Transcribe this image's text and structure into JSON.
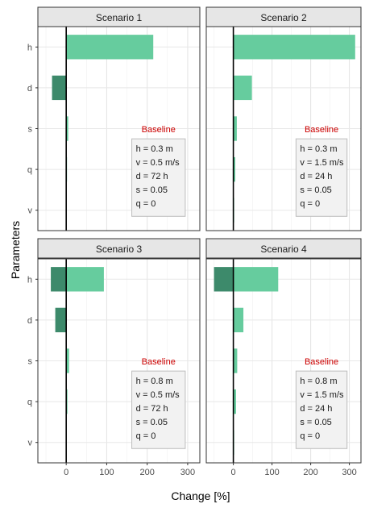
{
  "chart_data": {
    "type": "bar",
    "orientation": "horizontal",
    "xlabel": "Change [%]",
    "ylabel": "Parameters",
    "xlim": [
      -70,
      330
    ],
    "x_ticks": [
      0,
      100,
      200,
      300
    ],
    "categories": [
      "h",
      "d",
      "s",
      "q",
      "v"
    ],
    "grid": true,
    "colors": {
      "increase": "#66cc9e",
      "decrease": "#3d8a6b",
      "zero_line": "#000000",
      "strip_bg": "#e6e6e6",
      "box_bg": "#f2f2f2",
      "baseline_title": "#cc0000"
    },
    "panels": [
      {
        "title": "Scenario 1",
        "series": [
          {
            "values": [
              215,
              0,
              5,
              2,
              0
            ]
          },
          {
            "values": [
              0,
              -35,
              0,
              0,
              0
            ]
          }
        ],
        "baseline": {
          "title": "Baseline",
          "lines": [
            "h = 0.3 m",
            "v = 0.5 m/s",
            "d = 72 h",
            "s = 0.05",
            "q = 0"
          ]
        }
      },
      {
        "title": "Scenario 2",
        "series": [
          {
            "values": [
              315,
              48,
              9,
              5,
              2
            ]
          },
          {
            "values": [
              0,
              0,
              0,
              0,
              0
            ]
          }
        ],
        "baseline": {
          "title": "Baseline",
          "lines": [
            "h = 0.3 m",
            "v = 1.5 m/s",
            "d = 24 h",
            "s = 0.05",
            "q = 0"
          ]
        }
      },
      {
        "title": "Scenario 3",
        "series": [
          {
            "values": [
              93,
              0,
              7,
              3,
              0
            ]
          },
          {
            "values": [
              -38,
              -27,
              0,
              0,
              0
            ]
          }
        ],
        "baseline": {
          "title": "Baseline",
          "lines": [
            "h = 0.8 m",
            "v = 0.5 m/s",
            "d = 72 h",
            "s = 0.05",
            "q = 0"
          ]
        }
      },
      {
        "title": "Scenario 4",
        "series": [
          {
            "values": [
              116,
              26,
              10,
              7,
              2
            ]
          },
          {
            "values": [
              -50,
              0,
              0,
              0,
              0
            ]
          }
        ],
        "baseline": {
          "title": "Baseline",
          "lines": [
            "h = 0.8 m",
            "v = 1.5 m/s",
            "d = 24 h",
            "s = 0.05",
            "q = 0"
          ]
        }
      }
    ]
  }
}
